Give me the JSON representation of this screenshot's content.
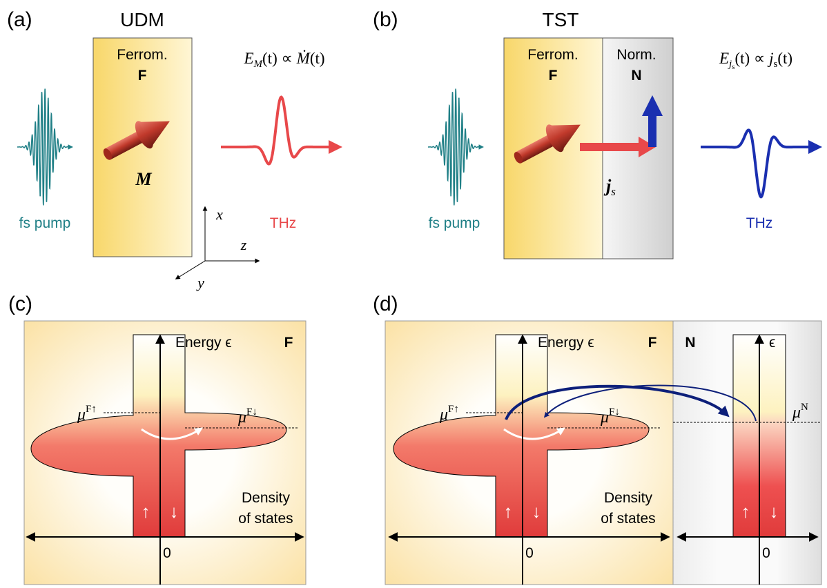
{
  "panel_a": {
    "label": "(a)",
    "title": "UDM",
    "layer": "Ferrom.",
    "layer_symbol": "F",
    "magnetization": "M",
    "formula": [
      "E",
      "M",
      "(t) ∝ ",
      "Ṁ",
      "(t)"
    ],
    "pump": "fs pump",
    "emission": "THz",
    "axes": {
      "x": "x",
      "z": "z",
      "y": "y"
    }
  },
  "panel_b": {
    "label": "(b)",
    "title": "TST",
    "layer_f": "Ferrom.",
    "symbol_f": "F",
    "layer_n": "Norm.",
    "symbol_n": "N",
    "current": [
      "j",
      "s"
    ],
    "formula": [
      "E",
      "j",
      "s",
      "(t) ∝ ",
      "j",
      "s",
      "(t)"
    ],
    "pump": "fs pump",
    "emission": "THz"
  },
  "panel_c": {
    "label": "(c)",
    "energy": "Energy ϵ",
    "region": "F",
    "mu_up": [
      "μ",
      "F↑"
    ],
    "mu_down": [
      "μ",
      "F↓"
    ],
    "spin_up": "↑",
    "spin_down": "↓",
    "dos": [
      "Density",
      "of states"
    ],
    "zero": "0"
  },
  "panel_d": {
    "label": "(d)",
    "energy": "Energy ϵ",
    "region_f": "F",
    "region_n": "N",
    "energy_n": "ϵ",
    "mu_up": [
      "μ",
      "F↑"
    ],
    "mu_down": [
      "μ",
      "F↓"
    ],
    "mu_n": [
      "μ",
      "N"
    ],
    "spin_up": "↑",
    "spin_down": "↓",
    "spin_up_n": "↑",
    "spin_down_n": "↓",
    "dos": [
      "Density",
      "of states"
    ],
    "zero": "0",
    "zero_n": "0"
  }
}
